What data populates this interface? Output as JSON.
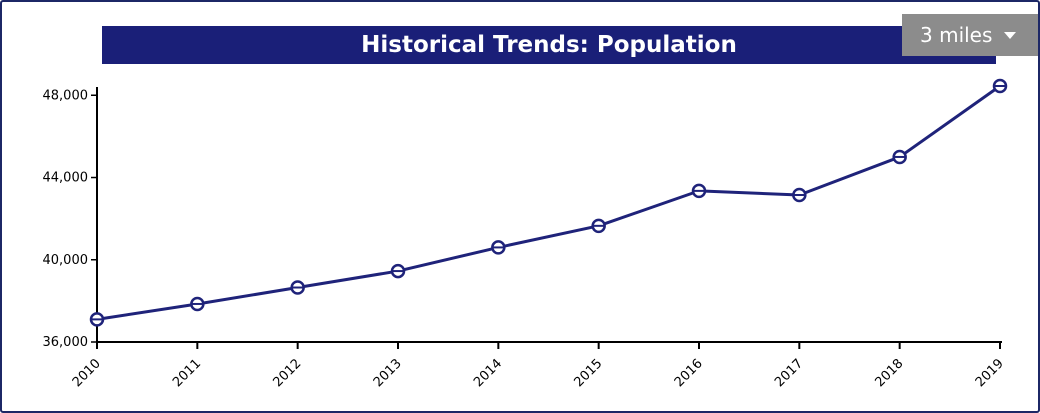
{
  "title": "Historical Trends: Population",
  "radius_selector": {
    "selected": "3 miles",
    "icon": "caret-down-icon"
  },
  "colors": {
    "title_bg": "#1a1f78",
    "line": "#1f237a",
    "dropdown_bg": "#8c8c8c"
  },
  "chart_data": {
    "type": "line",
    "title": "Historical Trends: Population",
    "xlabel": "",
    "ylabel": "",
    "categories": [
      "2010",
      "2011",
      "2012",
      "2013",
      "2014",
      "2015",
      "2016",
      "2017",
      "2018",
      "2019"
    ],
    "series": [
      {
        "values": [
          37100,
          37850,
          38650,
          39450,
          40600,
          41650,
          43350,
          43150,
          45000,
          48450
        ]
      }
    ],
    "yticks": [
      36000,
      40000,
      44000,
      48000
    ],
    "ytick_labels": [
      "36,000",
      "40,000",
      "44,000",
      "48,000"
    ],
    "ylim": [
      36000,
      48500
    ],
    "grid": false,
    "legend": "none"
  }
}
